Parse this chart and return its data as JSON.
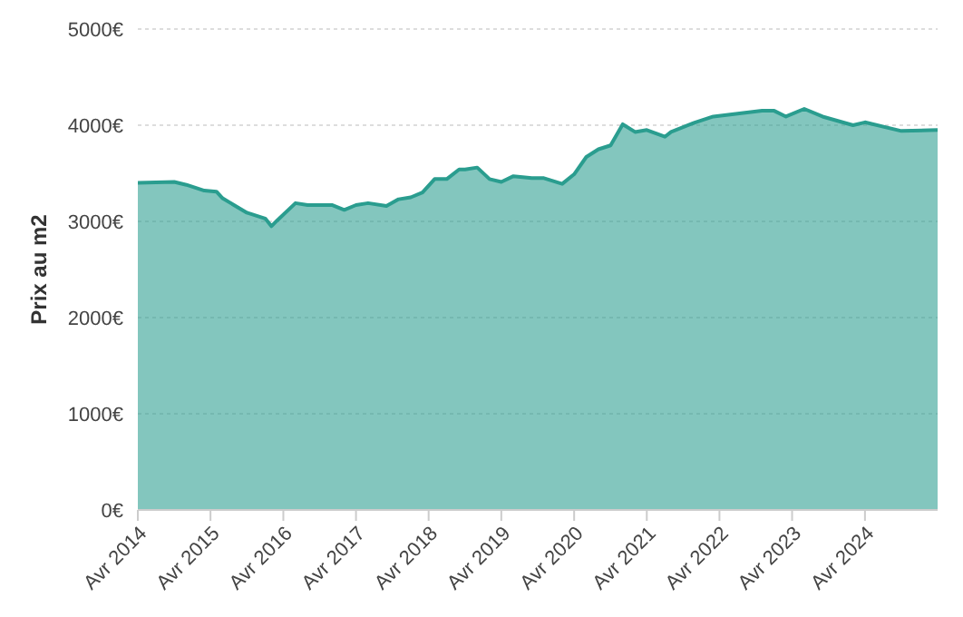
{
  "chart_data": {
    "type": "area",
    "ylabel": "Prix au m2",
    "x": [
      "2014-04",
      "2014-10",
      "2014-12",
      "2015-03",
      "2015-05",
      "2015-06",
      "2015-10",
      "2016-01",
      "2016-02",
      "2016-03",
      "2016-06",
      "2016-08",
      "2016-12",
      "2017-02",
      "2017-04",
      "2017-06",
      "2017-09",
      "2017-11",
      "2018-01",
      "2018-03",
      "2018-05",
      "2018-07",
      "2018-09",
      "2018-10",
      "2018-12",
      "2019-02",
      "2019-04",
      "2019-06",
      "2019-09",
      "2019-11",
      "2020-02",
      "2020-04",
      "2020-06",
      "2020-08",
      "2020-10",
      "2020-12",
      "2021-02",
      "2021-04",
      "2021-07",
      "2021-08",
      "2021-12",
      "2022-03",
      "2022-07",
      "2022-11",
      "2023-01",
      "2023-03",
      "2023-06",
      "2023-09",
      "2024-02",
      "2024-04",
      "2024-10",
      "2025-04"
    ],
    "series": [
      {
        "color": "#2a9d8f",
        "values": [
          3400,
          3410,
          3380,
          3320,
          3310,
          3240,
          3090,
          3030,
          2950,
          3010,
          3190,
          3170,
          3170,
          3120,
          3170,
          3190,
          3160,
          3230,
          3250,
          3300,
          3440,
          3440,
          3540,
          3540,
          3560,
          3440,
          3410,
          3470,
          3450,
          3450,
          3390,
          3490,
          3670,
          3750,
          3790,
          4010,
          3930,
          3950,
          3880,
          3930,
          4030,
          4090,
          4120,
          4150,
          4150,
          4090,
          4170,
          4090,
          4000,
          4030,
          3940,
          3950
        ]
      }
    ],
    "xlim": [
      "2014-04",
      "2025-04"
    ],
    "xticks": [
      {
        "value": "2014-04",
        "label": "Avr 2014"
      },
      {
        "value": "2015-04",
        "label": "Avr 2015"
      },
      {
        "value": "2016-04",
        "label": "Avr 2016"
      },
      {
        "value": "2017-04",
        "label": "Avr 2017"
      },
      {
        "value": "2018-04",
        "label": "Avr 2018"
      },
      {
        "value": "2019-04",
        "label": "Avr 2019"
      },
      {
        "value": "2020-04",
        "label": "Avr 2020"
      },
      {
        "value": "2021-04",
        "label": "Avr 2021"
      },
      {
        "value": "2022-04",
        "label": "Avr 2022"
      },
      {
        "value": "2023-04",
        "label": "Avr 2023"
      },
      {
        "value": "2024-04",
        "label": "Avr 2024"
      }
    ],
    "ylim": [
      0,
      5000
    ],
    "yticks": [
      {
        "value": 0,
        "label": "0€"
      },
      {
        "value": 1000,
        "label": "1000€"
      },
      {
        "value": 2000,
        "label": "2000€"
      },
      {
        "value": 3000,
        "label": "3000€"
      },
      {
        "value": 4000,
        "label": "4000€"
      },
      {
        "value": 5000,
        "label": "5000€"
      }
    ],
    "grid": "y",
    "legend": false
  }
}
